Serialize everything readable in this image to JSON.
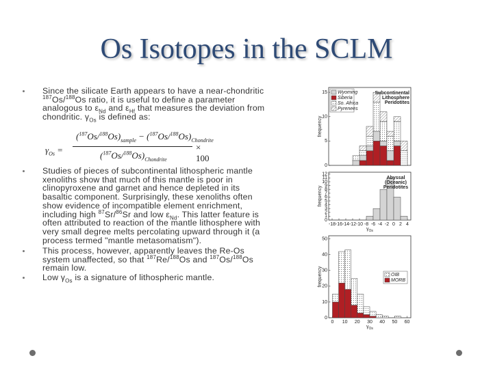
{
  "title": "Os Isotopes in the SCLM",
  "bullets": [
    [
      "Since the silicate Earth appears to have a near-chondritic ",
      {
        "sup": "187"
      },
      "Os/",
      {
        "sup": "188"
      },
      "Os ratio, it is useful to define a parameter analogous to ε",
      {
        "sub": "Nd"
      },
      " and ε",
      {
        "sub": "Hf"
      },
      " that measures the deviation from chondritic. γ",
      {
        "sub": "Os"
      },
      " is defined as:"
    ],
    [
      "Studies of pieces of subcontinental lithospheric mantle xenoliths show that much of this mantle is poor in clinopyroxene and garnet and hence depleted in its basaltic component. Surprisingly, these xenoliths often show evidence of incompatible element enrichment, including high ",
      {
        "sup": "87"
      },
      "Sr/",
      {
        "sup": "86"
      },
      "Sr and low ε",
      {
        "sub": "Nd"
      },
      ". This latter feature is often attributed to reaction of the mantle lithosphere with very small degree melts percolating upward through it (a process termed \"mantle metasomatism\")."
    ],
    [
      "This process, however, apparently leaves the Re-Os system unaffected, so that ",
      {
        "sup": "187"
      },
      "Re/",
      {
        "sup": "188"
      },
      "Os and ",
      {
        "sup": "187"
      },
      "Os/",
      {
        "sup": "188"
      },
      "Os remain low."
    ],
    [
      "Low γ",
      {
        "sub": "Os"
      },
      " is a signature of lithospheric mantle."
    ]
  ],
  "equation": {
    "lhs": [
      "γ",
      {
        "sub": "Os"
      },
      " ="
    ],
    "ratio": [
      {
        "sup": "187"
      },
      "Os/",
      {
        "sup": "188"
      },
      "Os"
    ],
    "sample": "sample",
    "reference": "Chondrite",
    "factor": "× 100"
  },
  "figure": [
    {
      "type": "histogram",
      "side_label": [
        "Subcontinental",
        "Lithosphere",
        "Peridotites"
      ],
      "y_label": "frequency",
      "bins": [
        -12,
        -10,
        -8,
        -6,
        -4,
        -2,
        0,
        2,
        4
      ],
      "xlim": [
        -19,
        5
      ],
      "ylim": [
        0,
        16
      ],
      "yticks": [
        0,
        5,
        10,
        15
      ],
      "series": [
        {
          "name": "Siberia",
          "color": "#b01f24",
          "pattern": "none",
          "values": [
            0,
            1,
            3,
            5,
            4,
            1,
            4,
            0
          ]
        },
        {
          "name": "Wyoming",
          "color": "#d4d4d4",
          "pattern": "none",
          "values": [
            1,
            1,
            1,
            2,
            1,
            2,
            1,
            0
          ]
        },
        {
          "name": "So. Africa",
          "color": "#ffffff",
          "pattern": "dots",
          "values": [
            1,
            1,
            2,
            6,
            4,
            3,
            4,
            3
          ]
        },
        {
          "name": "Pyrenees",
          "color": "#ffffff",
          "pattern": "hatch",
          "values": [
            0,
            1,
            2,
            2,
            2,
            1,
            1,
            2
          ]
        }
      ]
    },
    {
      "type": "histogram",
      "side_label": [
        "Abyssal",
        "(Oceanic)",
        "Peridotites"
      ],
      "y_label": "frequency",
      "x_label": [
        "γ",
        {
          "sub": "Os"
        }
      ],
      "bins": [
        -8,
        -6,
        -4,
        -2,
        0,
        2,
        4
      ],
      "xlim": [
        -19,
        5
      ],
      "ylim": [
        0,
        12.5
      ],
      "xticks": [
        -18,
        -16,
        -14,
        -12,
        -10,
        -8,
        -6,
        -4,
        -2,
        0,
        2,
        4
      ],
      "yticks": [
        0,
        1,
        2,
        3,
        4,
        5,
        6,
        7,
        8,
        9,
        10,
        11,
        12
      ],
      "series": [
        {
          "name": "Abyssal",
          "color": "#d4d4d4",
          "pattern": "none",
          "values": [
            1,
            3,
            8,
            11,
            6,
            1
          ]
        }
      ],
      "legend": false
    },
    {
      "type": "histogram",
      "y_label": "frequency",
      "x_label": [
        "γ",
        {
          "sub": "Os"
        }
      ],
      "bins": [
        0,
        5,
        10,
        15,
        20,
        25,
        30,
        35,
        40,
        45,
        50,
        55
      ],
      "xlim": [
        -3,
        63
      ],
      "ylim": [
        0,
        52
      ],
      "xticks": [
        0,
        10,
        20,
        30,
        40,
        50,
        60
      ],
      "yticks": [
        0,
        10,
        20,
        30,
        40,
        50
      ],
      "series": [
        {
          "name": "MORB",
          "color": "#b01f24",
          "pattern": "none",
          "values": [
            10,
            22,
            18,
            8,
            3,
            2,
            1,
            0,
            0,
            0,
            0
          ]
        },
        {
          "name": "OIB",
          "color": "#ffffff",
          "pattern": "dots",
          "values": [
            5,
            20,
            25,
            17,
            12,
            5,
            3,
            2,
            1,
            0,
            1
          ]
        }
      ]
    }
  ]
}
